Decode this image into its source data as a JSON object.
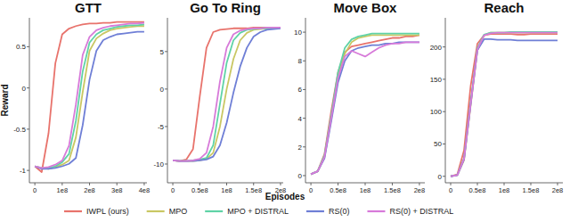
{
  "chart_data": [
    {
      "type": "line",
      "title": "GTT",
      "y_label": "Reward",
      "x": [
        0,
        25000000,
        50000000,
        75000000,
        100000000,
        125000000,
        150000000,
        175000000,
        200000000,
        225000000,
        250000000,
        275000000,
        300000000,
        325000000,
        350000000,
        375000000,
        400000000
      ],
      "xlim": [
        -20000000,
        410000000
      ],
      "xticks": [
        0,
        {
          "value": 100000000,
          "label": "1e8"
        },
        {
          "value": 200000000,
          "label": "2e8"
        },
        {
          "value": 300000000,
          "label": "3e8"
        },
        {
          "value": 400000000,
          "label": "4e8"
        }
      ],
      "ylim": [
        -1.15,
        0.85
      ],
      "yticks": [
        -1,
        -0.5,
        0,
        0.5
      ],
      "grid": false,
      "legend": "bottom",
      "series": [
        {
          "name": "IWPL (ours)",
          "color": "#e8736c",
          "values": [
            -0.95,
            -1.02,
            -0.55,
            0.3,
            0.65,
            0.72,
            0.75,
            0.77,
            0.78,
            0.78,
            0.79,
            0.79,
            0.8,
            0.8,
            0.8,
            0.8,
            0.8
          ]
        },
        {
          "name": "MPO",
          "color": "#c9c763",
          "values": [
            -0.95,
            -0.97,
            -0.98,
            -0.96,
            -0.93,
            -0.88,
            -0.6,
            -0.05,
            0.45,
            0.6,
            0.66,
            0.7,
            0.72,
            0.73,
            0.74,
            0.75,
            0.75
          ]
        },
        {
          "name": "MPO + DISTRAL",
          "color": "#5fd3a6",
          "values": [
            -0.95,
            -0.97,
            -0.97,
            -0.95,
            -0.9,
            -0.8,
            -0.4,
            0.2,
            0.55,
            0.65,
            0.7,
            0.72,
            0.74,
            0.75,
            0.76,
            0.76,
            0.77
          ]
        },
        {
          "name": "RS(0)",
          "color": "#6f7fd6",
          "values": [
            -0.95,
            -0.98,
            -0.98,
            -0.97,
            -0.95,
            -0.92,
            -0.85,
            -0.45,
            0.1,
            0.45,
            0.58,
            0.62,
            0.65,
            0.66,
            0.67,
            0.68,
            0.68
          ]
        },
        {
          "name": "RS(0) + DISTRAL",
          "color": "#d77ad9",
          "values": [
            -0.95,
            -0.97,
            -0.96,
            -0.93,
            -0.88,
            -0.7,
            -0.2,
            0.4,
            0.62,
            0.7,
            0.73,
            0.75,
            0.76,
            0.77,
            0.78,
            0.78,
            0.79
          ]
        }
      ]
    },
    {
      "type": "line",
      "title": "Go To Ring",
      "x_label": "Episodes",
      "x": [
        0,
        12500000,
        25000000,
        37500000,
        50000000,
        62500000,
        75000000,
        87500000,
        100000000,
        112500000,
        125000000,
        137500000,
        150000000,
        162500000,
        175000000,
        187500000,
        200000000
      ],
      "xlim": [
        -10000000,
        205000000
      ],
      "xticks": [
        0,
        {
          "value": 50000000,
          "label": "0.5e8"
        },
        {
          "value": 100000000,
          "label": "1e8"
        },
        {
          "value": 150000000,
          "label": "1.5e8"
        },
        {
          "value": 200000000,
          "label": "2e8"
        }
      ],
      "ylim": [
        -12.5,
        9.5
      ],
      "yticks": [
        -10,
        -5,
        0,
        5
      ],
      "grid": false,
      "series": [
        {
          "name": "IWPL (ours)",
          "color": "#e8736c",
          "values": [
            -9.5,
            -9.6,
            -9.4,
            -8.0,
            -1,
            5.5,
            7.6,
            7.9,
            8.0,
            8.1,
            8.1,
            8.1,
            8.2,
            8.2,
            8.2,
            8.2,
            8.2
          ]
        },
        {
          "name": "MPO",
          "color": "#c9c763",
          "values": [
            -9.5,
            -9.6,
            -9.6,
            -9.6,
            -9.5,
            -9.3,
            -8.5,
            -5,
            0,
            4,
            6.5,
            7.5,
            7.9,
            8.0,
            8.1,
            8.1,
            8.2
          ]
        },
        {
          "name": "MPO + DISTRAL",
          "color": "#5fd3a6",
          "values": [
            -9.5,
            -9.6,
            -9.6,
            -9.5,
            -9.4,
            -9.2,
            -7.5,
            -2,
            3.5,
            6.5,
            7.5,
            7.9,
            8.0,
            8.1,
            8.1,
            8.2,
            8.2
          ]
        },
        {
          "name": "RS(0)",
          "color": "#6f7fd6",
          "values": [
            -9.5,
            -9.6,
            -9.6,
            -9.6,
            -9.5,
            -9.4,
            -9.0,
            -7.5,
            -4.5,
            -0.5,
            3,
            5.5,
            7,
            7.6,
            7.9,
            8.0,
            8.1
          ]
        },
        {
          "name": "RS(0) + DISTRAL",
          "color": "#d77ad9",
          "values": [
            -9.5,
            -9.6,
            -9.6,
            -9.5,
            -9.3,
            -8.5,
            -5,
            1,
            5.5,
            7.3,
            7.8,
            8.0,
            8.1,
            8.1,
            8.2,
            8.2,
            8.2
          ]
        }
      ]
    },
    {
      "type": "line",
      "title": "Move Box",
      "x": [
        0,
        12500000,
        25000000,
        37500000,
        50000000,
        62500000,
        75000000,
        87500000,
        100000000,
        112500000,
        125000000,
        137500000,
        150000000,
        162500000,
        175000000,
        187500000,
        200000000
      ],
      "xlim": [
        -10000000,
        210000000
      ],
      "xticks": [
        0,
        {
          "value": 50000000,
          "label": "0.5e8"
        },
        {
          "value": 100000000,
          "label": "1e8"
        },
        {
          "value": 150000000,
          "label": "1.5e8"
        },
        {
          "value": 200000000,
          "label": "2e8"
        }
      ],
      "ylim": [
        -0.5,
        11
      ],
      "yticks": [
        0,
        2,
        4,
        6,
        8,
        10
      ],
      "grid": false,
      "series": [
        {
          "name": "IWPL (ours)",
          "color": "#e8736c",
          "values": [
            0.1,
            0.3,
            1.5,
            4.5,
            7.2,
            8.6,
            9.0,
            9.1,
            9.2,
            9.3,
            9.4,
            9.5,
            9.6,
            9.6,
            9.7,
            9.7,
            9.8
          ]
        },
        {
          "name": "MPO",
          "color": "#c9c763",
          "values": [
            0.1,
            0.3,
            1.3,
            4.0,
            6.8,
            8.5,
            9.3,
            9.6,
            9.7,
            9.8,
            9.8,
            9.8,
            9.8,
            9.8,
            9.8,
            9.8,
            9.8
          ]
        },
        {
          "name": "MPO + DISTRAL",
          "color": "#5fd3a6",
          "values": [
            0.1,
            0.3,
            1.4,
            4.2,
            7.2,
            8.9,
            9.5,
            9.7,
            9.8,
            9.9,
            9.9,
            9.9,
            9.9,
            9.9,
            9.9,
            9.9,
            9.9
          ]
        },
        {
          "name": "RS(0)",
          "color": "#6f7fd6",
          "values": [
            0.1,
            0.3,
            1.2,
            3.8,
            6.5,
            8.0,
            8.7,
            8.9,
            9.0,
            9.1,
            9.1,
            9.2,
            9.2,
            9.3,
            9.3,
            9.3,
            9.3
          ]
        },
        {
          "name": "RS(0) + DISTRAL",
          "color": "#d77ad9",
          "values": [
            0.1,
            0.3,
            1.3,
            4.0,
            6.8,
            8.3,
            8.7,
            8.5,
            8.3,
            8.6,
            8.9,
            9.1,
            9.2,
            9.2,
            9.3,
            9.3,
            9.3
          ]
        }
      ]
    },
    {
      "type": "line",
      "title": "Reach",
      "x": [
        0,
        12500000,
        25000000,
        37500000,
        50000000,
        62500000,
        75000000,
        87500000,
        100000000,
        112500000,
        125000000,
        137500000,
        150000000,
        162500000,
        175000000,
        187500000,
        200000000
      ],
      "xlim": [
        -10000000,
        210000000
      ],
      "xticks": [
        0,
        {
          "value": 50000000,
          "label": "0.5e8"
        },
        {
          "value": 100000000,
          "label": "1e8"
        },
        {
          "value": 150000000,
          "label": "1.5e8"
        },
        {
          "value": 200000000,
          "label": "2e8"
        }
      ],
      "ylim": [
        -10,
        245
      ],
      "yticks": [
        0,
        50,
        100,
        150,
        200
      ],
      "grid": false,
      "series": [
        {
          "name": "IWPL (ours)",
          "color": "#e8736c",
          "values": [
            0,
            3,
            40,
            140,
            205,
            218,
            220,
            220,
            220,
            220,
            219,
            219,
            220,
            220,
            220,
            220,
            220
          ]
        },
        {
          "name": "MPO",
          "color": "#c9c763",
          "values": [
            0,
            2,
            25,
            110,
            195,
            218,
            222,
            222,
            222,
            222,
            222,
            222,
            222,
            222,
            222,
            222,
            222
          ]
        },
        {
          "name": "MPO + DISTRAL",
          "color": "#5fd3a6",
          "values": [
            0,
            2,
            28,
            115,
            198,
            219,
            222,
            222,
            222,
            223,
            223,
            223,
            223,
            223,
            223,
            223,
            223
          ]
        },
        {
          "name": "RS(0)",
          "color": "#6f7fd6",
          "values": [
            0,
            2,
            26,
            112,
            195,
            212,
            212,
            211,
            211,
            211,
            210,
            210,
            210,
            210,
            210,
            210,
            210
          ]
        },
        {
          "name": "RS(0) + DISTRAL",
          "color": "#d77ad9",
          "values": [
            0,
            2,
            27,
            112,
            196,
            218,
            221,
            222,
            222,
            222,
            222,
            222,
            222,
            222,
            222,
            222,
            222
          ]
        }
      ]
    }
  ]
}
